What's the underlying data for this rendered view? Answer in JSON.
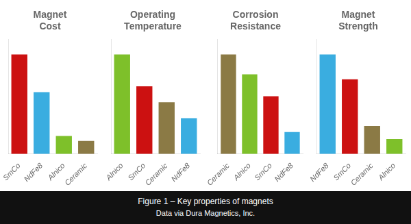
{
  "chart_data": [
    {
      "type": "bar",
      "title": "Magnet\nCost",
      "categories": [
        "SmCo",
        "NdFe8",
        "Alnico",
        "Ceramic"
      ],
      "values": [
        100,
        62,
        18,
        13
      ],
      "colors": [
        "#cc1111",
        "#3aade0",
        "#7ec02a",
        "#8b7a45"
      ],
      "ylim": [
        0,
        115
      ],
      "grid": false,
      "tick_labels": "x"
    },
    {
      "type": "bar",
      "title": "Operating\nTemperature",
      "categories": [
        "Alnico",
        "SmCo",
        "Ceramic",
        "NdFe8"
      ],
      "values": [
        100,
        68,
        52,
        36
      ],
      "colors": [
        "#7ec02a",
        "#cc1111",
        "#8b7a45",
        "#3aade0"
      ],
      "ylim": [
        0,
        115
      ],
      "grid": false,
      "tick_labels": "x"
    },
    {
      "type": "bar",
      "title": "Corrosion\nResistance",
      "categories": [
        "Ceramic",
        "Alnico",
        "SmCo",
        "NdFe8"
      ],
      "values": [
        100,
        80,
        58,
        22
      ],
      "colors": [
        "#8b7a45",
        "#7ec02a",
        "#cc1111",
        "#3aade0"
      ],
      "ylim": [
        0,
        115
      ],
      "grid": false,
      "tick_labels": "x"
    },
    {
      "type": "bar",
      "title": "Magnet\nStrength",
      "categories": [
        "NdFe8",
        "SmCo",
        "Ceramic",
        "Alnico"
      ],
      "values": [
        100,
        75,
        28,
        15
      ],
      "colors": [
        "#3aade0",
        "#cc1111",
        "#8b7a45",
        "#7ec02a"
      ],
      "ylim": [
        0,
        115
      ],
      "grid": false,
      "tick_labels": "x"
    }
  ],
  "annotations": [
    "Figure 1 – Key properties of magnets",
    "Data via Dura Magnetics, Inc."
  ]
}
